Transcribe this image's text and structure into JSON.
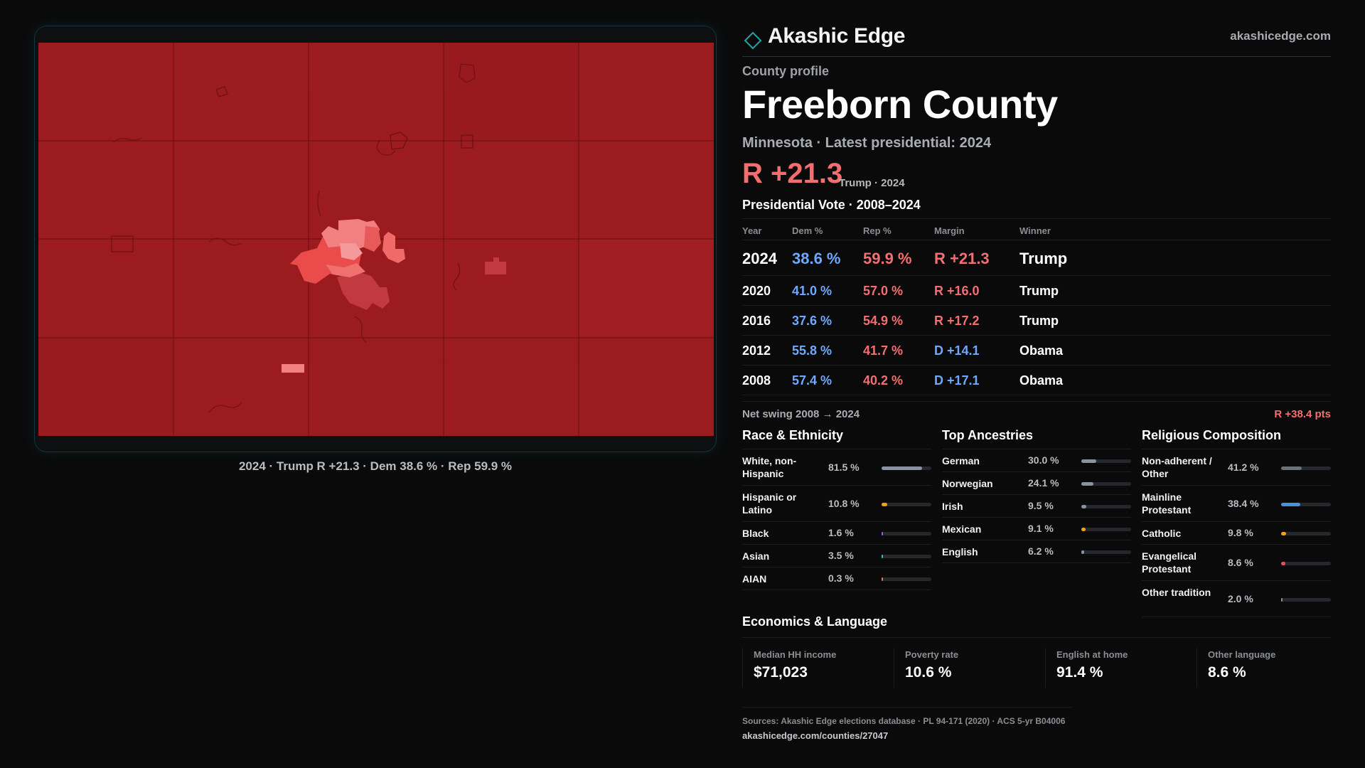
{
  "map": {
    "caption": "2024 · Trump R +21.3 · Dem 38.6 % · Rep 59.9 %",
    "colors": {
      "base": "#9b1b1f",
      "light": "#f28080",
      "mid": "#ea4b4b",
      "dark": "#c23a3f",
      "lines": "#6b1114"
    }
  },
  "brand": {
    "name": "Akashic Edge",
    "url": "akashicedge.com",
    "logo_icon": "diamond-outline-icon",
    "accent": "#1fa3a8"
  },
  "header": {
    "kicker": "County profile",
    "county": "Freeborn County",
    "subline": "Minnesota · Latest presidential: 2024",
    "margin": "R +21.3",
    "margin_note": "Trump · 2024"
  },
  "vote": {
    "title": "Presidential Vote · 2008–2024",
    "headers": {
      "year": "Year",
      "dem": "Dem %",
      "rep": "Rep %",
      "margin": "Margin",
      "winner": "Winner"
    },
    "rows": [
      {
        "year": "2024",
        "dem": "38.6 %",
        "rep": "59.9 %",
        "margin": "R +21.3",
        "party": "R",
        "winner": "Trump"
      },
      {
        "year": "2020",
        "dem": "41.0 %",
        "rep": "57.0 %",
        "margin": "R +16.0",
        "party": "R",
        "winner": "Trump"
      },
      {
        "year": "2016",
        "dem": "37.6 %",
        "rep": "54.9 %",
        "margin": "R +17.2",
        "party": "R",
        "winner": "Trump"
      },
      {
        "year": "2012",
        "dem": "55.8 %",
        "rep": "41.7 %",
        "margin": "D +14.1",
        "party": "D",
        "winner": "Obama"
      },
      {
        "year": "2008",
        "dem": "57.4 %",
        "rep": "40.2 %",
        "margin": "D +17.1",
        "party": "D",
        "winner": "Obama"
      }
    ],
    "swing_label": "Net swing 2008 → 2024",
    "swing_value": "R +38.4 pts"
  },
  "race": {
    "title": "Race & Ethnicity",
    "items": [
      {
        "label": "White, non-Hispanic",
        "pct": "81.5 %",
        "value": 81.5,
        "color": "#8b949e"
      },
      {
        "label": "Hispanic or Latino",
        "pct": "10.8 %",
        "value": 10.8,
        "color": "#f0a020"
      },
      {
        "label": "Black",
        "pct": "1.6 %",
        "value": 1.6,
        "color": "#9b5de5"
      },
      {
        "label": "Asian",
        "pct": "3.5 %",
        "value": 3.5,
        "color": "#2ec4b6"
      },
      {
        "label": "AIAN",
        "pct": "0.3 %",
        "value": 0.3,
        "color": "#e07a5f"
      }
    ]
  },
  "ancestry": {
    "title": "Top Ancestries",
    "items": [
      {
        "label": "German",
        "pct": "30.0 %",
        "value": 30.0,
        "color": "#8b949e"
      },
      {
        "label": "Norwegian",
        "pct": "24.1 %",
        "value": 24.1,
        "color": "#8b949e"
      },
      {
        "label": "Irish",
        "pct": "9.5 %",
        "value": 9.5,
        "color": "#8b949e"
      },
      {
        "label": "Mexican",
        "pct": "9.1 %",
        "value": 9.1,
        "color": "#f0a020"
      },
      {
        "label": "English",
        "pct": "6.2 %",
        "value": 6.2,
        "color": "#8b949e"
      }
    ]
  },
  "religion": {
    "title": "Religious Composition",
    "items": [
      {
        "label": "Non-adherent / Other",
        "pct": "41.2 %",
        "value": 41.2,
        "color": "#6b7178"
      },
      {
        "label": "Mainline Protestant",
        "pct": "38.4 %",
        "value": 38.4,
        "color": "#4a90e2"
      },
      {
        "label": "Catholic",
        "pct": "9.8 %",
        "value": 9.8,
        "color": "#f0a020"
      },
      {
        "label": "Evangelical Protestant",
        "pct": "8.6 %",
        "value": 8.6,
        "color": "#e05555"
      },
      {
        "label": "Other tradition",
        "pct": "2.0 %",
        "value": 2.0,
        "color": "#8b949e"
      }
    ]
  },
  "econ": {
    "title": "Economics & Language",
    "items": [
      {
        "label": "Median HH income",
        "value": "$71,023"
      },
      {
        "label": "Poverty rate",
        "value": "10.6 %"
      },
      {
        "label": "English at home",
        "value": "91.4 %"
      },
      {
        "label": "Other language",
        "value": "8.6 %"
      }
    ]
  },
  "sources": {
    "line": "Sources: Akashic Edge elections database · PL 94-171 (2020) · ACS 5-yr B04006",
    "url": "akashicedge.com/counties/27047"
  }
}
